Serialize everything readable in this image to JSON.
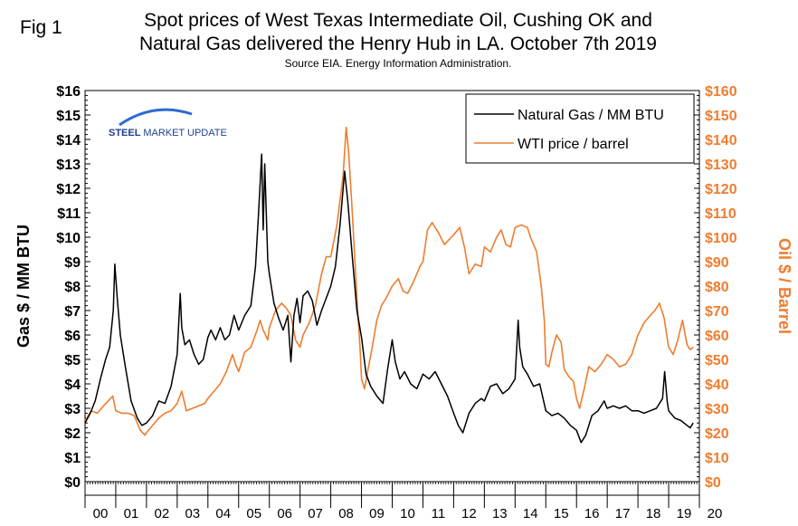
{
  "figure": {
    "label": "Fig 1",
    "title_line1": "Spot prices of West Texas Intermediate Oil, Cushing OK and",
    "title_line2": "Natural Gas delivered the Henry Hub in LA. October 7th 2019",
    "source": "Source EIA. Energy Information Administration.",
    "logo_part1": "STEEL ",
    "logo_part2": "MARKET UPDATE"
  },
  "colors": {
    "gas": "#000000",
    "oil": "#ed7d31",
    "logo_blue": "#1f3f8f",
    "logo_accent": "#2f6bd0"
  },
  "chart_data": {
    "type": "line",
    "title": "Spot prices of West Texas Intermediate Oil, Cushing OK and Natural Gas delivered the Henry Hub in LA. October 7th 2019",
    "ylabel_left": "Gas $ / MM BTU",
    "ylabel_right": "Oil $ / Barrel",
    "ylim_left": [
      0,
      16
    ],
    "ylim_right": [
      0,
      160
    ],
    "xlim": [
      2000,
      2020
    ],
    "left_ticks": [
      "$0",
      "$1",
      "$2",
      "$3",
      "$4",
      "$5",
      "$6",
      "$7",
      "$8",
      "$9",
      "$10",
      "$11",
      "$12",
      "$13",
      "$14",
      "$15",
      "$16"
    ],
    "right_ticks": [
      "$0",
      "$10",
      "$20",
      "$30",
      "$40",
      "$50",
      "$60",
      "$70",
      "$80",
      "$90",
      "$100",
      "$110",
      "$120",
      "$130",
      "$140",
      "$150",
      "$160"
    ],
    "x_labels": [
      "00",
      "01",
      "02",
      "03",
      "04",
      "05",
      "06",
      "07",
      "08",
      "09",
      "10",
      "11",
      "12",
      "13",
      "14",
      "15",
      "16",
      "17",
      "18",
      "19",
      "20"
    ],
    "legend_position": "top-right",
    "series": [
      {
        "name": "Natural Gas / MM BTU",
        "axis": "left",
        "x": [
          2000.0,
          2000.17,
          2000.33,
          2000.5,
          2000.67,
          2000.8,
          2000.92,
          2000.97,
          2001.05,
          2001.15,
          2001.3,
          2001.5,
          2001.7,
          2001.85,
          2002.0,
          2002.2,
          2002.4,
          2002.6,
          2002.8,
          2003.0,
          2003.1,
          2003.15,
          2003.25,
          2003.4,
          2003.55,
          2003.7,
          2003.85,
          2004.0,
          2004.1,
          2004.25,
          2004.4,
          2004.55,
          2004.7,
          2004.85,
          2005.0,
          2005.2,
          2005.4,
          2005.55,
          2005.65,
          2005.75,
          2005.8,
          2005.85,
          2005.95,
          2006.0,
          2006.15,
          2006.3,
          2006.45,
          2006.6,
          2006.7,
          2006.8,
          2006.9,
          2007.0,
          2007.1,
          2007.25,
          2007.4,
          2007.55,
          2007.7,
          2007.85,
          2008.0,
          2008.15,
          2008.3,
          2008.45,
          2008.55,
          2008.7,
          2008.85,
          2009.0,
          2009.15,
          2009.3,
          2009.5,
          2009.7,
          2009.85,
          2010.0,
          2010.1,
          2010.25,
          2010.4,
          2010.6,
          2010.8,
          2011.0,
          2011.2,
          2011.4,
          2011.6,
          2011.8,
          2012.0,
          2012.15,
          2012.3,
          2012.5,
          2012.7,
          2012.9,
          2013.0,
          2013.2,
          2013.4,
          2013.6,
          2013.8,
          2014.0,
          2014.1,
          2014.15,
          2014.25,
          2014.4,
          2014.6,
          2014.8,
          2015.0,
          2015.2,
          2015.4,
          2015.6,
          2015.8,
          2016.0,
          2016.15,
          2016.3,
          2016.5,
          2016.7,
          2016.9,
          2017.0,
          2017.2,
          2017.4,
          2017.6,
          2017.8,
          2018.0,
          2018.2,
          2018.4,
          2018.6,
          2018.8,
          2018.87,
          2018.95,
          2019.0,
          2019.2,
          2019.4,
          2019.6,
          2019.7,
          2019.8
        ],
        "values": [
          2.4,
          2.8,
          3.3,
          4.2,
          5.0,
          5.5,
          7.0,
          8.9,
          7.5,
          6.0,
          4.8,
          3.3,
          2.6,
          2.3,
          2.4,
          2.7,
          3.3,
          3.2,
          3.9,
          5.2,
          7.7,
          6.3,
          5.6,
          5.8,
          5.2,
          4.8,
          5.0,
          5.9,
          6.2,
          5.8,
          6.3,
          5.8,
          6.0,
          6.8,
          6.2,
          6.8,
          7.2,
          8.8,
          11.0,
          13.4,
          10.3,
          13.0,
          9.0,
          8.5,
          7.3,
          6.7,
          6.2,
          6.8,
          4.9,
          6.8,
          7.5,
          6.5,
          7.6,
          7.8,
          7.4,
          6.4,
          7.0,
          7.5,
          8.0,
          8.8,
          10.5,
          12.7,
          11.5,
          9.2,
          7.0,
          5.9,
          4.4,
          3.9,
          3.5,
          3.2,
          4.6,
          5.8,
          4.9,
          4.2,
          4.5,
          4.0,
          3.8,
          4.4,
          4.2,
          4.5,
          4.0,
          3.5,
          2.8,
          2.3,
          2.0,
          2.8,
          3.2,
          3.4,
          3.3,
          3.9,
          4.0,
          3.6,
          3.8,
          4.2,
          6.6,
          5.5,
          4.7,
          4.4,
          3.9,
          4.0,
          2.9,
          2.7,
          2.8,
          2.6,
          2.3,
          2.1,
          1.6,
          1.9,
          2.7,
          2.9,
          3.3,
          3.0,
          3.1,
          3.0,
          3.1,
          2.9,
          2.9,
          2.8,
          2.9,
          3.0,
          3.4,
          4.5,
          3.3,
          2.9,
          2.6,
          2.5,
          2.3,
          2.2,
          2.4
        ]
      },
      {
        "name": "WTI price / barrel",
        "axis": "right",
        "x": [
          2000.0,
          2000.2,
          2000.4,
          2000.6,
          2000.75,
          2000.9,
          2001.0,
          2001.2,
          2001.4,
          2001.6,
          2001.8,
          2001.95,
          2002.0,
          2002.2,
          2002.4,
          2002.6,
          2002.8,
          2003.0,
          2003.15,
          2003.3,
          2003.5,
          2003.7,
          2003.9,
          2004.0,
          2004.2,
          2004.4,
          2004.6,
          2004.8,
          2004.9,
          2005.0,
          2005.2,
          2005.4,
          2005.6,
          2005.7,
          2005.8,
          2005.95,
          2006.0,
          2006.2,
          2006.4,
          2006.55,
          2006.7,
          2006.85,
          2007.0,
          2007.1,
          2007.3,
          2007.5,
          2007.7,
          2007.85,
          2008.0,
          2008.2,
          2008.4,
          2008.5,
          2008.58,
          2008.7,
          2008.85,
          2008.95,
          2009.0,
          2009.1,
          2009.2,
          2009.35,
          2009.5,
          2009.65,
          2009.8,
          2010.0,
          2010.2,
          2010.35,
          2010.5,
          2010.7,
          2010.9,
          2011.0,
          2011.15,
          2011.3,
          2011.5,
          2011.7,
          2011.85,
          2012.0,
          2012.2,
          2012.35,
          2012.5,
          2012.7,
          2012.9,
          2013.0,
          2013.2,
          2013.4,
          2013.55,
          2013.7,
          2013.85,
          2014.0,
          2014.2,
          2014.4,
          2014.5,
          2014.7,
          2014.85,
          2014.95,
          2015.0,
          2015.1,
          2015.2,
          2015.35,
          2015.5,
          2015.6,
          2015.75,
          2015.9,
          2016.0,
          2016.1,
          2016.25,
          2016.4,
          2016.6,
          2016.8,
          2017.0,
          2017.2,
          2017.4,
          2017.6,
          2017.8,
          2018.0,
          2018.2,
          2018.4,
          2018.55,
          2018.7,
          2018.85,
          2019.0,
          2019.15,
          2019.3,
          2019.45,
          2019.6,
          2019.7,
          2019.8
        ],
        "values": [
          25,
          29,
          28,
          31,
          33,
          35,
          29,
          28,
          28,
          27,
          21,
          19,
          20,
          23,
          26,
          28,
          29,
          32,
          37,
          29,
          30,
          31,
          32,
          34,
          37,
          40,
          45,
          52,
          48,
          45,
          53,
          55,
          62,
          66,
          62,
          58,
          63,
          70,
          73,
          71,
          68,
          58,
          55,
          60,
          65,
          72,
          85,
          92,
          92,
          105,
          125,
          145,
          135,
          110,
          75,
          55,
          42,
          38,
          45,
          55,
          66,
          72,
          75,
          80,
          83,
          78,
          77,
          82,
          88,
          90,
          103,
          106,
          102,
          97,
          99,
          101,
          104,
          96,
          85,
          89,
          88,
          96,
          94,
          100,
          103,
          97,
          96,
          104,
          105,
          104,
          100,
          94,
          80,
          66,
          48,
          47,
          53,
          60,
          57,
          46,
          43,
          41,
          34,
          30,
          38,
          47,
          45,
          48,
          52,
          50,
          47,
          48,
          52,
          60,
          65,
          68,
          70,
          73,
          67,
          55,
          52,
          58,
          66,
          56,
          54,
          55
        ]
      }
    ]
  }
}
